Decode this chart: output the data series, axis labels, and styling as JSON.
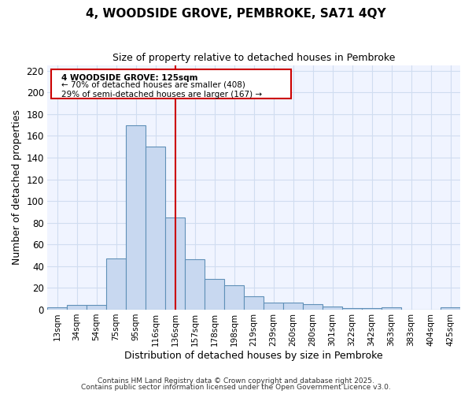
{
  "title": "4, WOODSIDE GROVE, PEMBROKE, SA71 4QY",
  "subtitle": "Size of property relative to detached houses in Pembroke",
  "xlabel": "Distribution of detached houses by size in Pembroke",
  "ylabel": "Number of detached properties",
  "bar_color": "#c8d8f0",
  "bar_edge_color": "#6090b8",
  "categories": [
    "13sqm",
    "34sqm",
    "54sqm",
    "75sqm",
    "95sqm",
    "116sqm",
    "136sqm",
    "157sqm",
    "178sqm",
    "198sqm",
    "219sqm",
    "239sqm",
    "260sqm",
    "280sqm",
    "301sqm",
    "322sqm",
    "342sqm",
    "363sqm",
    "383sqm",
    "404sqm",
    "425sqm"
  ],
  "values": [
    2,
    4,
    4,
    47,
    170,
    150,
    85,
    46,
    28,
    22,
    12,
    6,
    6,
    5,
    3,
    1,
    1,
    2,
    0,
    0,
    2
  ],
  "property_line_x": 6.0,
  "annotation_line": "4 WOODSIDE GROVE: 125sqm",
  "annotation_pct1": "← 70% of detached houses are smaller (408)",
  "annotation_pct2": "29% of semi-detached houses are larger (167) →",
  "annotation_box_color": "#ffffff",
  "annotation_border_color": "#cc0000",
  "red_line_color": "#cc0000",
  "ylim": [
    0,
    225
  ],
  "yticks": [
    0,
    20,
    40,
    60,
    80,
    100,
    120,
    140,
    160,
    180,
    200,
    220
  ],
  "grid_color": "#d0ddf0",
  "bg_color": "#f0f4ff",
  "fig_bg_color": "#ffffff",
  "footer1": "Contains HM Land Registry data © Crown copyright and database right 2025.",
  "footer2": "Contains public sector information licensed under the Open Government Licence v3.0."
}
